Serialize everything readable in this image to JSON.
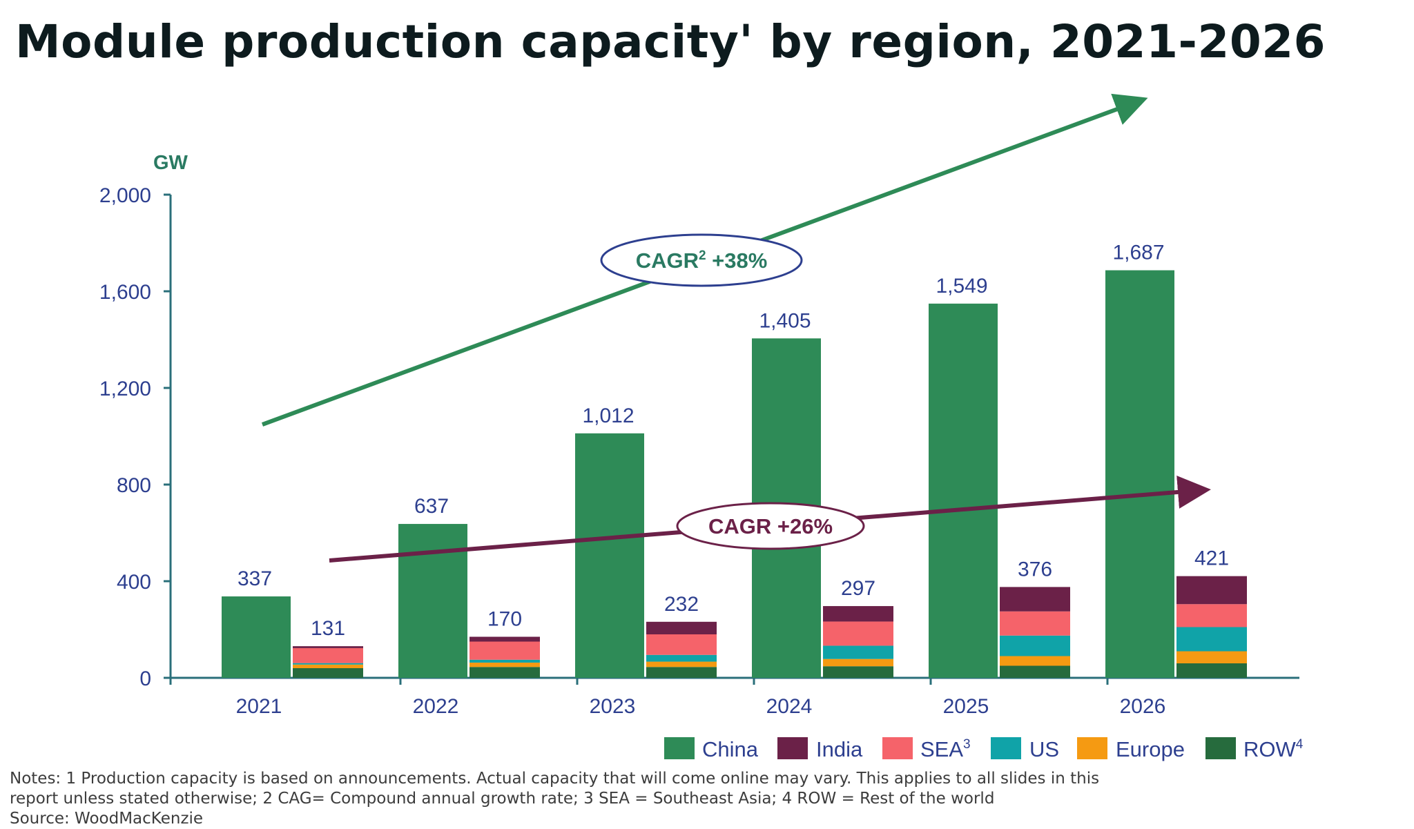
{
  "title": "Module production capacity' by region, 2021-2026",
  "notes": [
    "Notes: 1 Production capacity is based on announcements. Actual capacity that will come online may vary. This applies to all slides in this",
    "report unless stated otherwise; 2 CAG= Compound annual growth rate; 3 SEA = Southeast Asia; 4 ROW = Rest of the world",
    "Source: WoodMacKenzie"
  ],
  "colors": {
    "China": "#2e8b57",
    "India": "#6b2148",
    "SEA": "#f5636a",
    "US": "#10a3a8",
    "Europe": "#f59a12",
    "ROW": "#266b3d",
    "axis": "#2a6f7a",
    "axis_text": "#2d3f8f",
    "unit": "#2a7a62",
    "china_arrow": "#2e8b57",
    "rest_arrow": "#6b2148"
  },
  "chart_data": {
    "type": "bar",
    "ylabel": "GW",
    "ylim": [
      0,
      2000
    ],
    "yticks": [
      "0",
      "400",
      "800",
      "1,200",
      "1,600",
      "2,000"
    ],
    "ytick_values": [
      0,
      400,
      800,
      1200,
      1600,
      2000
    ],
    "categories": [
      "2021",
      "2022",
      "2023",
      "2024",
      "2025",
      "2026"
    ],
    "china": {
      "name": "China",
      "values": [
        337,
        637,
        1012,
        1405,
        1549,
        1687
      ],
      "labels": [
        "337",
        "637",
        "1,012",
        "1,405",
        "1,549",
        "1,687"
      ]
    },
    "rest_of_world_stack": {
      "totals": [
        131,
        170,
        232,
        297,
        376,
        421
      ],
      "labels": [
        "131",
        "170",
        "232",
        "297",
        "376",
        "421"
      ],
      "series": [
        {
          "name": "ROW",
          "key": "ROW",
          "values": [
            40,
            45,
            45,
            48,
            50,
            60
          ]
        },
        {
          "name": "Europe",
          "key": "Europe",
          "values": [
            15,
            18,
            22,
            30,
            40,
            50
          ]
        },
        {
          "name": "US",
          "key": "US",
          "values": [
            6,
            12,
            28,
            55,
            85,
            100
          ]
        },
        {
          "name": "SEA",
          "key": "SEA",
          "values": [
            62,
            75,
            85,
            100,
            100,
            95
          ]
        },
        {
          "name": "India",
          "key": "India",
          "values": [
            8,
            20,
            52,
            64,
            101,
            116
          ]
        }
      ]
    },
    "legend": {
      "placement": "bottom-right",
      "items": [
        {
          "label": "China",
          "sup": "",
          "key": "China"
        },
        {
          "label": "India",
          "sup": "",
          "key": "India"
        },
        {
          "label": "SEA",
          "sup": "3",
          "key": "SEA"
        },
        {
          "label": "US",
          "sup": "",
          "key": "US"
        },
        {
          "label": "Europe",
          "sup": "",
          "key": "Europe"
        },
        {
          "label": "ROW",
          "sup": "4",
          "key": "ROW"
        }
      ]
    },
    "annotations": [
      {
        "text": "CAGR",
        "sup": "2",
        "suffix": " +38%",
        "refers_to": "China"
      },
      {
        "text": "CAGR",
        "sup": "",
        "suffix": " +26%",
        "refers_to": "rest_of_world_stack"
      }
    ]
  }
}
